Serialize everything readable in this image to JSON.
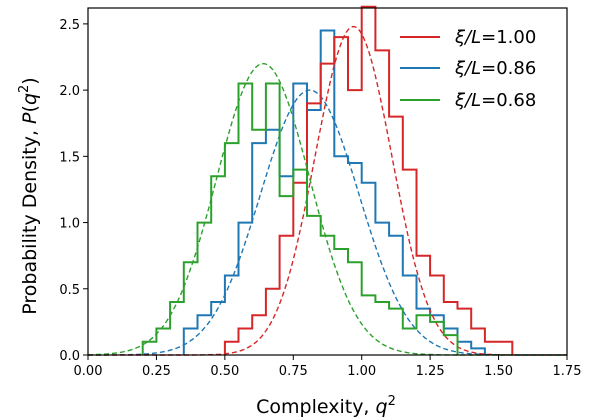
{
  "chart_data": {
    "type": "histogram",
    "title": "",
    "xlabel_text": "Complexity, ",
    "xlabel_var": "q",
    "xlabel_sup": "2",
    "ylabel_text": "Probability Density, ",
    "ylabel_var": "P",
    "ylabel_open": "(",
    "ylabel_var2": "q",
    "ylabel_sup": "2",
    "ylabel_close": ")",
    "xlim": [
      0,
      1.75
    ],
    "ylim": [
      0,
      2.62
    ],
    "xticks": [
      "0.00",
      "0.25",
      "0.50",
      "0.75",
      "1.00",
      "1.25",
      "1.50",
      "1.75"
    ],
    "yticks": [
      "0.0",
      "0.5",
      "1.0",
      "1.5",
      "2.0",
      "2.5"
    ],
    "grid": false,
    "legend_position": "upper right",
    "series": [
      {
        "name_var": "ξ/L",
        "name_value": "=1.00",
        "color": "#d62728",
        "fit": {
          "mu": 0.97,
          "sigma": 0.14,
          "peak": 2.48
        },
        "bin_edges": [
          0.5,
          0.55,
          0.6,
          0.65,
          0.7,
          0.75,
          0.8,
          0.85,
          0.9,
          0.95,
          1.0,
          1.05,
          1.1,
          1.15,
          1.2,
          1.25,
          1.3,
          1.35,
          1.4,
          1.45,
          1.5,
          1.55
        ],
        "values": [
          0.1,
          0.2,
          0.3,
          0.5,
          0.9,
          1.3,
          1.9,
          2.2,
          2.4,
          2.0,
          2.63,
          2.3,
          1.8,
          1.4,
          0.75,
          0.6,
          0.4,
          0.35,
          0.2,
          0.1,
          0.1
        ]
      },
      {
        "name_var": "ξ/L",
        "name_value": "=0.86",
        "color": "#1f77b4",
        "fit": {
          "mu": 0.81,
          "sigma": 0.18,
          "peak": 2.0
        },
        "bin_edges": [
          0.35,
          0.4,
          0.45,
          0.5,
          0.55,
          0.6,
          0.65,
          0.7,
          0.75,
          0.8,
          0.85,
          0.9,
          0.95,
          1.0,
          1.05,
          1.1,
          1.15,
          1.2,
          1.25,
          1.3,
          1.35,
          1.4,
          1.45
        ],
        "values": [
          0.2,
          0.3,
          0.4,
          0.6,
          1.0,
          1.6,
          1.7,
          1.35,
          2.05,
          1.85,
          2.45,
          1.5,
          1.45,
          1.3,
          1.0,
          0.9,
          0.6,
          0.35,
          0.3,
          0.2,
          0.1,
          0.05
        ]
      },
      {
        "name_var": "ξ/L",
        "name_value": "=0.68",
        "color": "#2ca02c",
        "fit": {
          "mu": 0.64,
          "sigma": 0.17,
          "peak": 2.2
        },
        "bin_edges": [
          0.2,
          0.25,
          0.3,
          0.35,
          0.4,
          0.45,
          0.5,
          0.55,
          0.6,
          0.65,
          0.7,
          0.75,
          0.8,
          0.85,
          0.9,
          0.95,
          1.0,
          1.05,
          1.1,
          1.15,
          1.2,
          1.25,
          1.3,
          1.35
        ],
        "values": [
          0.1,
          0.2,
          0.4,
          0.7,
          1.0,
          1.35,
          1.6,
          2.05,
          1.7,
          2.05,
          1.2,
          1.4,
          1.05,
          0.9,
          0.8,
          0.7,
          0.45,
          0.4,
          0.35,
          0.2,
          0.3,
          0.25,
          0.15
        ]
      }
    ]
  }
}
